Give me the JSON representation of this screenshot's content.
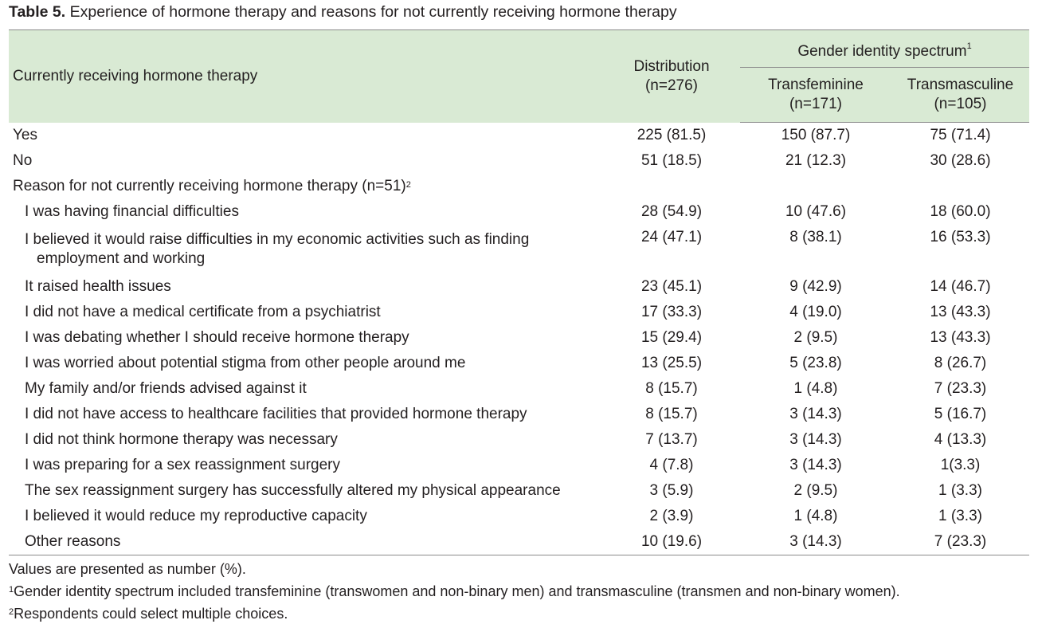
{
  "title": {
    "label": "Table 5.",
    "text": " Experience of hormone therapy and reasons for not currently receiving hormone therapy"
  },
  "header": {
    "row_label": "Currently receiving hormone therapy",
    "distribution_line1": "Distribution",
    "distribution_line2": "(n=276)",
    "spectrum_label": "Gender identity spectrum",
    "spectrum_sup": "1",
    "transfeminine_line1": "Transfeminine",
    "transfeminine_line2": "(n=171)",
    "transmasculine_line1": "Transmasculine",
    "transmasculine_line2": "(n=105)"
  },
  "rows": [
    {
      "label": "Yes",
      "dist": "225 (81.5)",
      "tf": "150 (87.7)",
      "tm": "75 (71.4)"
    },
    {
      "label": "No",
      "dist": "51 (18.5)",
      "tf": "21 (12.3)",
      "tm": "30 (28.6)"
    }
  ],
  "section": {
    "label": "Reason for not currently receiving hormone therapy (n=51)",
    "sup": "2"
  },
  "reasons": [
    {
      "label": "I was having financial difficulties",
      "dist": "28 (54.9)",
      "tf": "10 (47.6)",
      "tm": "18 (60.0)"
    },
    {
      "label": "I believed it would raise difficulties in my economic activities such as finding",
      "label2": "employment and working",
      "dist": "24 (47.1)",
      "tf": "8 (38.1)",
      "tm": "16 (53.3)"
    },
    {
      "label": "It raised health issues",
      "dist": "23 (45.1)",
      "tf": "9 (42.9)",
      "tm": "14 (46.7)"
    },
    {
      "label": "I did not have a medical certificate from a psychiatrist",
      "dist": "17 (33.3)",
      "tf": "4 (19.0)",
      "tm": "13 (43.3)"
    },
    {
      "label": "I was debating whether I should receive hormone therapy",
      "dist": "15 (29.4)",
      "tf": "2 (9.5)",
      "tm": "13 (43.3)"
    },
    {
      "label": "I was worried about potential stigma from other people around me",
      "dist": "13 (25.5)",
      "tf": "5 (23.8)",
      "tm": "8 (26.7)"
    },
    {
      "label": "My family and/or friends advised against it",
      "dist": "8 (15.7)",
      "tf": "1 (4.8)",
      "tm": "7 (23.3)"
    },
    {
      "label": "I did not have access to healthcare facilities that provided hormone therapy",
      "dist": "8 (15.7)",
      "tf": "3 (14.3)",
      "tm": "5 (16.7)"
    },
    {
      "label": "I did not think hormone therapy was necessary",
      "dist": "7 (13.7)",
      "tf": "3 (14.3)",
      "tm": "4 (13.3)"
    },
    {
      "label": "I was preparing for a sex reassignment surgery",
      "dist": "4 (7.8)",
      "tf": "3 (14.3)",
      "tm": "1(3.3)"
    },
    {
      "label": "The sex reassignment surgery has successfully altered my physical appearance",
      "dist": "3 (5.9)",
      "tf": "2 (9.5)",
      "tm": "1 (3.3)"
    },
    {
      "label": "I believed it would reduce my reproductive capacity",
      "dist": "2 (3.9)",
      "tf": "1 (4.8)",
      "tm": "1 (3.3)"
    },
    {
      "label": "Other reasons",
      "dist": "10 (19.6)",
      "tf": "3 (14.3)",
      "tm": "7 (23.3)"
    }
  ],
  "notes": {
    "values": "Values are presented as number (%).",
    "fn1_mark": "1",
    "fn1": "Gender identity spectrum included transfeminine (transwomen and non-binary men) and transmasculine (transmen and non-binary women).",
    "fn2_mark": "2",
    "fn2": "Respondents could select multiple choices."
  },
  "colors": {
    "header_bg": "#d9ead4",
    "rule": "#8a8a8a",
    "text": "#231f20"
  }
}
